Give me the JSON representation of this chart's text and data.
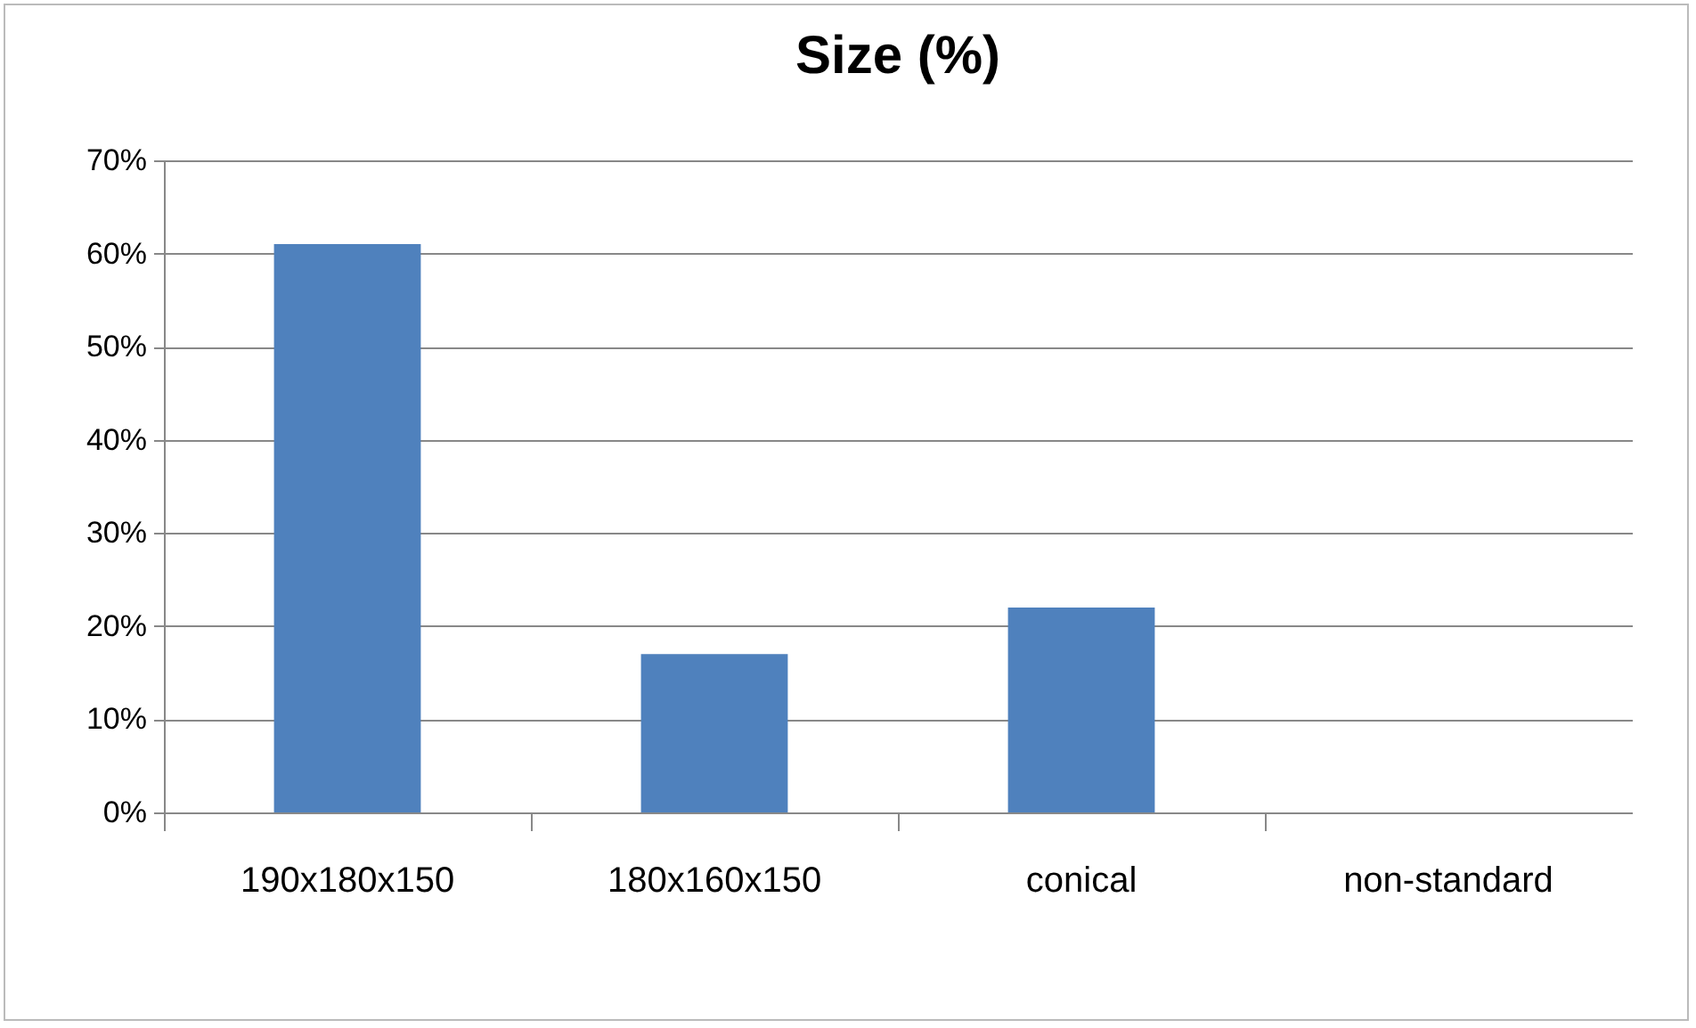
{
  "chart_data": {
    "type": "bar",
    "title": "Size (%)",
    "categories": [
      "190x180x150",
      "180x160x150",
      "conical",
      "non-standard"
    ],
    "values": [
      61,
      17,
      22,
      0
    ],
    "color": "#4f81bd",
    "ylim": [
      0,
      70
    ],
    "yticks": [
      {
        "value": 0,
        "label": "0%"
      },
      {
        "value": 10,
        "label": "10%"
      },
      {
        "value": 20,
        "label": "20%"
      },
      {
        "value": 30,
        "label": "30%"
      },
      {
        "value": 40,
        "label": "40%"
      },
      {
        "value": 50,
        "label": "50%"
      },
      {
        "value": 60,
        "label": "60%"
      },
      {
        "value": 70,
        "label": "70%"
      }
    ],
    "grid": "y"
  }
}
